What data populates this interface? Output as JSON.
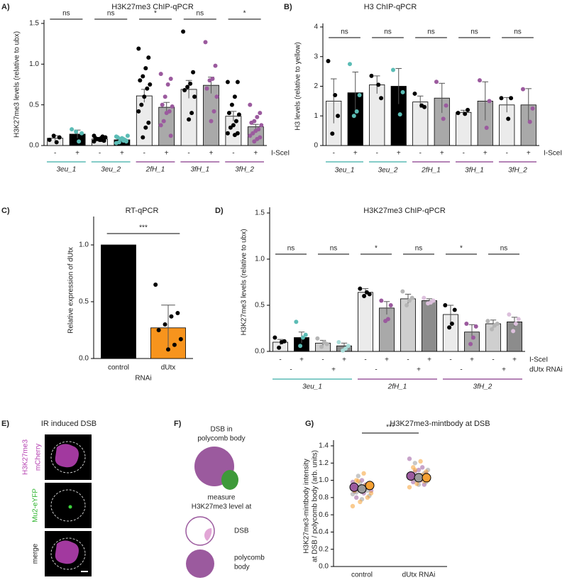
{
  "chart_data": [
    {
      "type": "bar",
      "panel": "A)",
      "title": "H3K27me3 ChIP-qPCR",
      "ylabel": "H3K27me3 levels (relative to ubx)",
      "ylim": [
        0,
        1.5
      ],
      "yticks": [
        {
          "value": 0,
          "label": "0.0"
        },
        0.5,
        {
          "value": 1,
          "label": "1.0"
        },
        1.5
      ],
      "bars": [
        {
          "value": 0.09,
          "error": 0.03,
          "color": "#ebebeb",
          "point_color": "#000000",
          "points": [
            0.07,
            0.1,
            0.04,
            0.12
          ]
        },
        {
          "value": 0.14,
          "error": 0.05,
          "color": "#000000",
          "point_color": "#5bbcb5",
          "points": [
            0.2,
            0.15,
            0.05,
            0.17
          ]
        },
        {
          "value": 0.08,
          "error": 0.01,
          "color": "#ebebeb",
          "point_color": "#000000",
          "points": [
            0.05,
            0.06,
            0.07,
            0.08,
            0.09,
            0.1,
            0.11,
            0.07,
            0.08,
            0.12,
            0.06,
            0.09
          ]
        },
        {
          "value": 0.07,
          "error": 0.01,
          "color": "#000000",
          "point_color": "#5bbcb5",
          "points": [
            0.03,
            0.05,
            0.06,
            0.08,
            0.1,
            0.12,
            0.07,
            0.09,
            0.04,
            0.11,
            0.06,
            0.08
          ]
        },
        {
          "value": 0.61,
          "error": 0.08,
          "color": "#ebebeb",
          "point_color": "#000000",
          "points": [
            1.19,
            1.08,
            0.95,
            0.85,
            0.8,
            0.75,
            0.7,
            0.6,
            0.5,
            0.42,
            0.28,
            0.22,
            0.1
          ]
        },
        {
          "value": 0.47,
          "error": 0.06,
          "color": "#a9a9a9",
          "point_color": "#9b5a9e",
          "points": [
            0.88,
            0.82,
            0.75,
            0.6,
            0.5,
            0.48,
            0.42,
            0.4,
            0.3,
            0.25,
            0.12
          ]
        },
        {
          "value": 0.69,
          "error": 0.11,
          "color": "#ebebeb",
          "point_color": "#000000",
          "points": [
            1.4,
            0.9,
            0.76,
            0.72,
            0.68,
            0.6,
            0.4,
            0.32
          ]
        },
        {
          "value": 0.74,
          "error": 0.1,
          "color": "#a9a9a9",
          "point_color": "#9b5a9e",
          "points": [
            1.27,
            0.98,
            0.82,
            0.8,
            0.7,
            0.6,
            0.42,
            0.3
          ]
        },
        {
          "value": 0.36,
          "error": 0.06,
          "color": "#ebebeb",
          "point_color": "#000000",
          "points": [
            0.78,
            0.78,
            0.6,
            0.5,
            0.4,
            0.38,
            0.3,
            0.25,
            0.22,
            0.15,
            0.15,
            0.13
          ]
        },
        {
          "value": 0.23,
          "error": 0.03,
          "color": "#a9a9a9",
          "point_color": "#9b5a9e",
          "points": [
            0.5,
            0.4,
            0.35,
            0.3,
            0.28,
            0.25,
            0.2,
            0.18,
            0.15,
            0.12,
            0.1,
            0.08,
            0.05
          ]
        }
      ],
      "comparisons": [
        "ns",
        "ns",
        "*",
        "ns",
        "*"
      ],
      "rows": [
        {
          "name": "I-SceI",
          "labels": [
            "-",
            "+",
            "-",
            "+",
            "-",
            "+",
            "-",
            "+",
            "-",
            "+"
          ]
        }
      ],
      "groups": [
        {
          "name": "3eu_1",
          "color": "#5bbcb5"
        },
        {
          "name": "3eu_2",
          "color": "#5bbcb5"
        },
        {
          "name": "2fH_1",
          "color": "#9b5a9e"
        },
        {
          "name": "3fH_1",
          "color": "#9b5a9e"
        },
        {
          "name": "3fH_2",
          "color": "#9b5a9e"
        }
      ]
    },
    {
      "type": "bar",
      "panel": "B)",
      "title": "H3 ChIP-qPCR",
      "ylabel": "H3 levels (relative to yellow)",
      "ylim": [
        0,
        4
      ],
      "yticks": [
        0,
        1,
        2,
        3,
        4
      ],
      "bars": [
        {
          "value": 1.5,
          "error": 0.75,
          "color": "#ebebeb",
          "point_color": "#000000",
          "points": [
            2.85,
            1.0,
            1.7,
            0.4
          ]
        },
        {
          "value": 1.78,
          "error": 0.7,
          "color": "#000000",
          "point_color": "#5bbcb5",
          "points": [
            2.75,
            1.7,
            1.15,
            1.0
          ]
        },
        {
          "value": 2.05,
          "error": 0.3,
          "color": "#ebebeb",
          "point_color": "#000000",
          "points": [
            2.35,
            1.6,
            2.05
          ]
        },
        {
          "value": 2.0,
          "error": 0.6,
          "color": "#000000",
          "point_color": "#5bbcb5",
          "points": [
            2.55,
            1.8,
            1.05
          ]
        },
        {
          "value": 1.47,
          "error": 0.2,
          "color": "#ebebeb",
          "point_color": "#000000",
          "points": [
            1.75,
            1.3,
            1.35
          ]
        },
        {
          "value": 1.6,
          "error": 0.5,
          "color": "#a9a9a9",
          "point_color": "#9b5a9e",
          "points": [
            2.15,
            1.35,
            0.9
          ]
        },
        {
          "value": 1.12,
          "error": 0.07,
          "color": "#ebebeb",
          "point_color": "#000000",
          "points": [
            1.1,
            1.2,
            1.07
          ]
        },
        {
          "value": 1.5,
          "error": 0.65,
          "color": "#a9a9a9",
          "point_color": "#9b5a9e",
          "points": [
            2.2,
            1.5,
            0.6
          ]
        },
        {
          "value": 1.37,
          "error": 0.25,
          "color": "#ebebeb",
          "point_color": "#000000",
          "points": [
            1.6,
            1.6,
            0.9
          ]
        },
        {
          "value": 1.37,
          "error": 0.55,
          "color": "#a9a9a9",
          "point_color": "#9b5a9e",
          "points": [
            1.9,
            1.25,
            0.8
          ]
        }
      ],
      "comparisons": [
        "ns",
        "ns",
        "ns",
        "ns",
        "ns"
      ],
      "rows": [
        {
          "name": "I-SceI",
          "labels": [
            "-",
            "+",
            "-",
            "+",
            "-",
            "+",
            "-",
            "+",
            "-",
            "+"
          ]
        }
      ],
      "groups": [
        {
          "name": "3eu_1",
          "color": "#5bbcb5"
        },
        {
          "name": "3eu_2",
          "color": "#5bbcb5"
        },
        {
          "name": "2fH_1",
          "color": "#9b5a9e"
        },
        {
          "name": "3fH_1",
          "color": "#9b5a9e"
        },
        {
          "name": "3fH_2",
          "color": "#9b5a9e"
        }
      ]
    },
    {
      "type": "bar",
      "panel": "C)",
      "title": "RT-qPCR",
      "ylabel": "Relative expression of dUtx",
      "xlabel": "RNAi",
      "ylim": [
        0,
        1.2
      ],
      "yticks": [
        {
          "value": 0,
          "label": "0.0"
        },
        0.5,
        {
          "value": 1,
          "label": "1.0"
        }
      ],
      "categories": [
        "control",
        "dUtx"
      ],
      "bars": [
        {
          "value": 1,
          "error": null,
          "color": "#000000",
          "point_color": "#000000",
          "points": []
        },
        {
          "value": 0.27,
          "error": 0.2,
          "color": "#f7941d",
          "point_color": "#000000",
          "points": [
            0.65,
            0.4,
            0.37,
            0.3,
            0.25,
            0.17,
            0.12,
            0.08
          ]
        }
      ],
      "comparisons": [
        "***"
      ]
    },
    {
      "type": "bar",
      "panel": "D)",
      "title": "H3K27me3 ChIP-qPCR",
      "ylabel": "H3K27me3 levels (relative to ubx)",
      "ylim": [
        0,
        1.5
      ],
      "yticks": [
        {
          "value": 0,
          "label": "0.0"
        },
        0.5,
        {
          "value": 1,
          "label": "1.0"
        },
        1.5
      ],
      "bars": [
        {
          "value": 0.1,
          "error": 0.03,
          "color": "#ebebeb",
          "point_color": "#000000",
          "points": [
            0.15,
            0.11,
            0.1,
            0.04
          ]
        },
        {
          "value": 0.15,
          "error": 0.06,
          "color": "#000000",
          "point_color": "#5bbcb5",
          "points": [
            0.32,
            0.18,
            0.15,
            0.06
          ]
        },
        {
          "value": 0.09,
          "error": 0.03,
          "color": "#cfcfcf",
          "point_color": "#b5b5b5",
          "points": [
            0.14,
            0.08,
            0.1,
            0.05
          ]
        },
        {
          "value": 0.06,
          "error": 0.03,
          "color": "#8c8c8c",
          "point_color": "#a8dcd8",
          "points": [
            0.1,
            0.06,
            0.03,
            0.01
          ]
        },
        {
          "value": 0.64,
          "error": 0.04,
          "color": "#ebebeb",
          "point_color": "#000000",
          "points": [
            0.68,
            0.62,
            0.64,
            0.6
          ]
        },
        {
          "value": 0.47,
          "error": 0.07,
          "color": "#a9a9a9",
          "point_color": "#9b5a9e",
          "points": [
            0.55,
            0.5,
            0.35,
            0.33
          ]
        },
        {
          "value": 0.57,
          "error": 0.05,
          "color": "#cfcfcf",
          "point_color": "#b5b5b5",
          "points": [
            0.65,
            0.58,
            0.55,
            0.5
          ]
        },
        {
          "value": 0.55,
          "error": 0.02,
          "color": "#8c8c8c",
          "point_color": "#dcc0dc",
          "points": [
            0.58,
            0.55,
            0.53,
            0.52
          ]
        },
        {
          "value": 0.4,
          "error": 0.1,
          "color": "#ebebeb",
          "point_color": "#000000",
          "points": [
            0.5,
            0.45,
            0.3,
            0.26
          ]
        },
        {
          "value": 0.21,
          "error": 0.08,
          "color": "#a9a9a9",
          "point_color": "#9b5a9e",
          "points": [
            0.3,
            0.27,
            0.15,
            0.08
          ]
        },
        {
          "value": 0.3,
          "error": 0.04,
          "color": "#cfcfcf",
          "point_color": "#b5b5b5",
          "points": [
            0.33,
            0.3,
            0.28,
            0.24
          ]
        },
        {
          "value": 0.32,
          "error": 0.05,
          "color": "#8c8c8c",
          "point_color": "#dcc0dc",
          "points": [
            0.4,
            0.35,
            0.3,
            0.22
          ]
        }
      ],
      "comparisons": [
        "ns",
        "ns",
        "*",
        "ns",
        "*",
        "ns"
      ],
      "rows": [
        {
          "name": "I-SceI",
          "labels": [
            "-",
            "+",
            "-",
            "+",
            "-",
            "+",
            "-",
            "+",
            "-",
            "+",
            "-",
            "+"
          ]
        },
        {
          "name": "dUtx RNAi",
          "labels": [
            "-",
            "+",
            "-",
            "+",
            "-",
            "+"
          ]
        }
      ],
      "groups": [
        {
          "name": "3eu_1",
          "color": "#5bbcb5"
        },
        {
          "name": "2fH_1",
          "color": "#9b5a9e"
        },
        {
          "name": "3fH_2",
          "color": "#9b5a9e"
        }
      ]
    },
    {
      "type": "strip",
      "panel": "G)",
      "title": "H3K27me3-mintbody at DSB",
      "ylabel": [
        "H3K27me3-mintbody intensity",
        "at DSB / polycomb body (arb. units)"
      ],
      "ylim": [
        0,
        1.4
      ],
      "yticks": [
        {
          "value": 0,
          "label": "0.0"
        },
        0.2,
        0.4,
        0.6,
        0.8,
        {
          "value": 1,
          "label": "1.0"
        },
        1.2,
        1.4
      ],
      "categories": [
        "control",
        "dUtx RNAi"
      ],
      "replicate_colors": [
        "#9b5a9e",
        "#9a9a9a",
        "#f5a033"
      ],
      "comparisons": [
        "***"
      ],
      "groups": [
        {
          "means": [
            0.92,
            0.9,
            0.94
          ],
          "points": [
            [
              0.98,
              0.95,
              0.9,
              0.88,
              0.85,
              0.8,
              0.93,
              1.0,
              0.87,
              0.92
            ],
            [
              1.05,
              0.95,
              0.9,
              0.86,
              0.82,
              0.78,
              0.92,
              0.88,
              0.97,
              0.84
            ],
            [
              1.08,
              1.0,
              0.96,
              0.92,
              0.88,
              0.8,
              0.75,
              0.7,
              0.94,
              0.99,
              0.85,
              0.9
            ]
          ]
        },
        {
          "means": [
            1.05,
            1.03,
            1.03
          ],
          "points": [
            [
              1.25,
              1.15,
              1.1,
              1.05,
              1.0,
              0.98,
              1.08,
              1.12,
              1.02,
              0.95
            ],
            [
              1.2,
              1.12,
              1.06,
              1.02,
              0.98,
              0.95,
              1.04,
              1.08,
              1.0
            ],
            [
              1.22,
              1.15,
              1.1,
              1.05,
              1.02,
              0.99,
              0.96,
              0.92,
              1.06,
              1.12,
              1.0
            ]
          ]
        }
      ]
    }
  ],
  "image_panel": {
    "panel": "E)",
    "title": "IR induced DSB",
    "channels": [
      [
        "H3K27me3",
        "mCherry"
      ],
      [
        "Mu2-eYFP"
      ],
      [
        "merge"
      ]
    ]
  },
  "diagram": {
    "panel": "F)",
    "top_label": [
      "DSB in",
      "polycomb body"
    ],
    "measure_label": [
      "measure",
      "H3K27me3 level at"
    ],
    "items": [
      [
        "DSB"
      ],
      [
        "polycomb",
        "body"
      ]
    ]
  }
}
